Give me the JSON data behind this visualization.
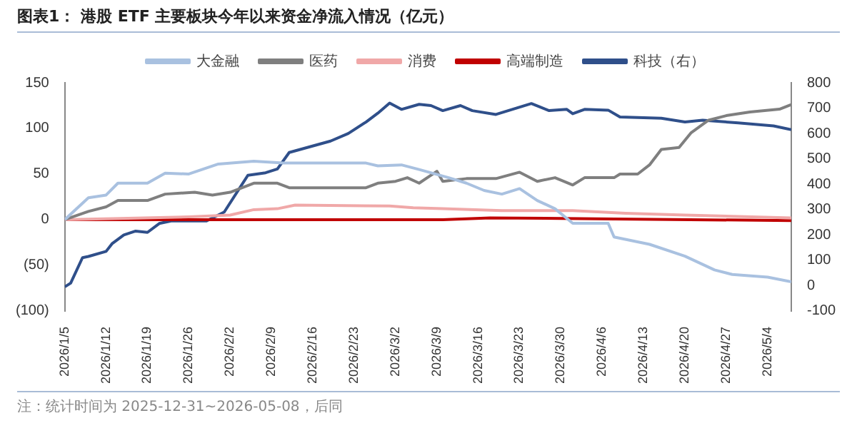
{
  "chart_data": {
    "type": "line",
    "title": "图表1：  港股 ETF 主要板块今年以来资金净流入情况（亿元）",
    "annotations": [
      "注：统计时间为 2025-12-31~2026-05-08，后同"
    ],
    "legend": "top",
    "grid": false,
    "marker": "none",
    "line_style": "solid",
    "xlim": [
      "2026-01-05",
      "2026-05-08"
    ],
    "xticks": [
      {
        "value": "2026-01-05",
        "label": "2026/1/5"
      },
      {
        "value": "2026-01-12",
        "label": "2026/1/12"
      },
      {
        "value": "2026-01-19",
        "label": "2026/1/19"
      },
      {
        "value": "2026-01-26",
        "label": "2026/1/26"
      },
      {
        "value": "2026-02-02",
        "label": "2026/2/2"
      },
      {
        "value": "2026-02-09",
        "label": "2026/2/9"
      },
      {
        "value": "2026-02-16",
        "label": "2026/2/16"
      },
      {
        "value": "2026-02-23",
        "label": "2026/2/23"
      },
      {
        "value": "2026-03-02",
        "label": "2026/3/2"
      },
      {
        "value": "2026-03-09",
        "label": "2026/3/9"
      },
      {
        "value": "2026-03-16",
        "label": "2026/3/16"
      },
      {
        "value": "2026-03-23",
        "label": "2026/3/23"
      },
      {
        "value": "2026-03-30",
        "label": "2026/3/30"
      },
      {
        "value": "2026-04-06",
        "label": "2026/4/6"
      },
      {
        "value": "2026-04-13",
        "label": "2026/4/13"
      },
      {
        "value": "2026-04-20",
        "label": "2026/4/20"
      },
      {
        "value": "2026-04-27",
        "label": "2026/4/27"
      },
      {
        "value": "2026-05-04",
        "label": "2026/5/4"
      }
    ],
    "ylim": [
      -100,
      150
    ],
    "yticks": [
      {
        "value": -100,
        "label": "(100)"
      },
      {
        "value": -50,
        "label": "(50)"
      },
      0,
      50,
      100,
      150
    ],
    "y2lim": [
      -100,
      800
    ],
    "y2ticks": [
      -100,
      0,
      100,
      200,
      300,
      400,
      500,
      600,
      700,
      800
    ],
    "series": [
      {
        "name": "大金融",
        "color": "#a9c1e0",
        "x": [
          "2026-01-05",
          "2026-01-09",
          "2026-01-12",
          "2026-01-14",
          "2026-01-19",
          "2026-01-22",
          "2026-01-26",
          "2026-01-31",
          "2026-02-06",
          "2026-02-11",
          "2026-02-25",
          "2026-02-27",
          "2026-03-03",
          "2026-03-06",
          "2026-03-11",
          "2026-03-14",
          "2026-03-17",
          "2026-03-20",
          "2026-03-23",
          "2026-03-26",
          "2026-03-29",
          "2026-04-01",
          "2026-04-07",
          "2026-04-08",
          "2026-04-14",
          "2026-04-20",
          "2026-04-25",
          "2026-04-28",
          "2026-05-04",
          "2026-05-08"
        ],
        "values": [
          0,
          24,
          27,
          40,
          40,
          51,
          50,
          61,
          64,
          62,
          62,
          59,
          60,
          55,
          46,
          40,
          32,
          28,
          34,
          21,
          12,
          -4,
          -4,
          -19,
          -27,
          -40,
          -55,
          -60,
          -63,
          -68
        ]
      },
      {
        "name": "医药",
        "color": "#7f7f7f",
        "x": [
          "2026-01-05",
          "2026-01-09",
          "2026-01-12",
          "2026-01-14",
          "2026-01-19",
          "2026-01-22",
          "2026-01-27",
          "2026-01-30",
          "2026-02-02",
          "2026-02-06",
          "2026-02-10",
          "2026-02-12",
          "2026-02-25",
          "2026-02-27",
          "2026-03-02",
          "2026-03-04",
          "2026-03-06",
          "2026-03-09",
          "2026-03-10",
          "2026-03-14",
          "2026-03-19",
          "2026-03-23",
          "2026-03-26",
          "2026-03-29",
          "2026-04-01",
          "2026-04-03",
          "2026-04-08",
          "2026-04-09",
          "2026-04-12",
          "2026-04-14",
          "2026-04-16",
          "2026-04-19",
          "2026-04-21",
          "2026-04-24",
          "2026-04-27",
          "2026-05-01",
          "2026-05-06",
          "2026-05-08"
        ],
        "values": [
          0,
          9,
          14,
          21,
          21,
          28,
          30,
          27,
          30,
          40,
          40,
          35,
          35,
          40,
          42,
          46,
          40,
          53,
          42,
          45,
          45,
          52,
          42,
          46,
          38,
          46,
          46,
          50,
          50,
          60,
          77,
          79,
          95,
          109,
          114,
          118,
          121,
          126
        ]
      },
      {
        "name": "消费",
        "color": "#f0a8a8",
        "x": [
          "2026-01-05",
          "2026-01-26",
          "2026-02-02",
          "2026-02-06",
          "2026-02-10",
          "2026-02-13",
          "2026-03-01",
          "2026-03-05",
          "2026-03-10",
          "2026-03-20",
          "2026-04-01",
          "2026-04-10",
          "2026-04-20",
          "2026-05-08"
        ],
        "values": [
          0,
          3,
          5,
          11,
          12,
          16,
          15,
          13,
          12,
          10,
          10,
          7,
          5,
          2
        ]
      },
      {
        "name": "高端制造",
        "color": "#c00000",
        "x": [
          "2026-01-05",
          "2026-03-10",
          "2026-03-18",
          "2026-04-05",
          "2026-05-08"
        ],
        "values": [
          0,
          0,
          2,
          1,
          -1
        ]
      },
      {
        "name": "科技（右）",
        "color": "#2f4f8a",
        "axis": "y2",
        "x": [
          "2026-01-05",
          "2026-01-06",
          "2026-01-08",
          "2026-01-09",
          "2026-01-12",
          "2026-01-13",
          "2026-01-15",
          "2026-01-17",
          "2026-01-19",
          "2026-01-21",
          "2026-01-23",
          "2026-01-29",
          "2026-02-01",
          "2026-02-05",
          "2026-02-08",
          "2026-02-10",
          "2026-02-12",
          "2026-02-19",
          "2026-02-22",
          "2026-02-25",
          "2026-02-27",
          "2026-03-01",
          "2026-03-03",
          "2026-03-06",
          "2026-03-08",
          "2026-03-10",
          "2026-03-13",
          "2026-03-15",
          "2026-03-19",
          "2026-03-25",
          "2026-03-28",
          "2026-03-31",
          "2026-04-01",
          "2026-04-03",
          "2026-04-07",
          "2026-04-09",
          "2026-04-16",
          "2026-04-20",
          "2026-04-23",
          "2026-04-29",
          "2026-05-05",
          "2026-05-08"
        ],
        "values": [
          -5,
          10,
          110,
          115,
          135,
          165,
          200,
          215,
          210,
          245,
          255,
          255,
          290,
          435,
          445,
          460,
          525,
          570,
          600,
          645,
          680,
          720,
          695,
          715,
          710,
          690,
          710,
          690,
          675,
          718,
          690,
          695,
          678,
          695,
          692,
          665,
          660,
          645,
          652,
          642,
          630,
          615
        ]
      }
    ]
  }
}
